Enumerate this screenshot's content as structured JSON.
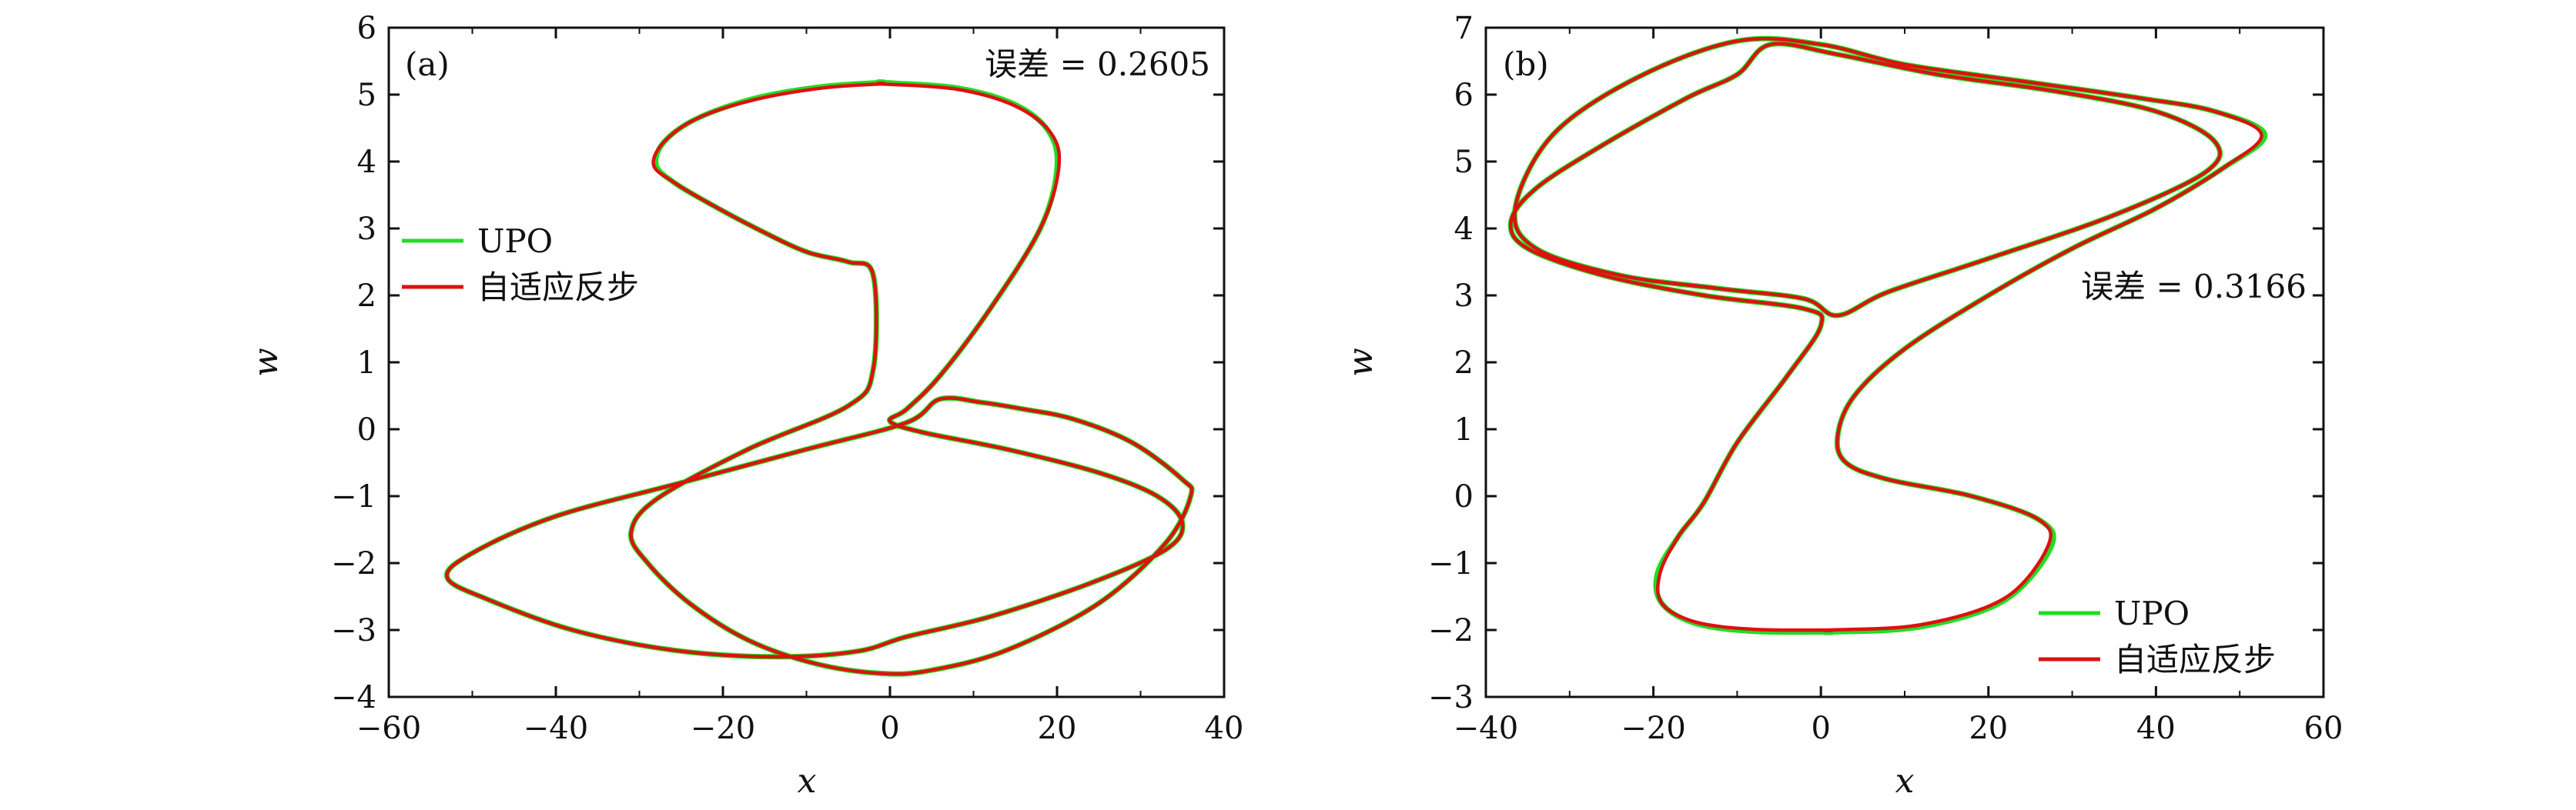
{
  "chart_data": [
    {
      "type": "line",
      "panel_label": "(a)",
      "annotation": "误差 = 0.2605",
      "xlabel": "x",
      "ylabel": "w",
      "xlim": [
        -60,
        40
      ],
      "ylim": [
        -4,
        6
      ],
      "xticks": [
        -60,
        -40,
        -20,
        0,
        20,
        40
      ],
      "xtick_labels": [
        "−60",
        "−40",
        "−20",
        "0",
        "20",
        "40"
      ],
      "yticks": [
        -4,
        -3,
        -2,
        -1,
        0,
        1,
        2,
        3,
        4,
        5,
        6
      ],
      "ytick_labels": [
        "−4",
        "−3",
        "−2",
        "−1",
        "0",
        "1",
        "2",
        "3",
        "4",
        "5",
        "6"
      ],
      "grid": false,
      "legend_placement": "left",
      "series": [
        {
          "name": "UPO",
          "color": "#22dd22",
          "x": [
            -1,
            8,
            15,
            19,
            20,
            18,
            12,
            6,
            2,
            0,
            4,
            14,
            25,
            32,
            35,
            33,
            24,
            12,
            2,
            -4,
            -14,
            -26,
            -38,
            -48,
            -53,
            -50,
            -40,
            -25,
            -10,
            2,
            6,
            11,
            16,
            22,
            29,
            35,
            36,
            33,
            25,
            14,
            5,
            -1,
            -9,
            -17,
            -24,
            -29,
            -31,
            -28,
            -17,
            -5,
            -2,
            -2,
            -5,
            -10,
            -16,
            -22,
            -26,
            -28,
            -27,
            -23,
            -16,
            -8,
            -1
          ],
          "y": [
            5.18,
            5.1,
            4.85,
            4.45,
            3.9,
            3.0,
            1.8,
            0.8,
            0.3,
            0.12,
            -0.05,
            -0.3,
            -0.65,
            -1.0,
            -1.4,
            -1.8,
            -2.3,
            -2.8,
            -3.1,
            -3.32,
            -3.4,
            -3.3,
            -3.0,
            -2.55,
            -2.22,
            -1.85,
            -1.3,
            -0.8,
            -0.3,
            0.1,
            0.45,
            0.4,
            0.3,
            0.15,
            -0.2,
            -0.75,
            -1.0,
            -1.7,
            -2.6,
            -3.3,
            -3.6,
            -3.65,
            -3.5,
            -3.15,
            -2.6,
            -2.0,
            -1.55,
            -1.05,
            -0.3,
            0.35,
            0.9,
            2.3,
            2.5,
            2.65,
            3.0,
            3.4,
            3.7,
            3.95,
            4.3,
            4.65,
            4.95,
            5.12,
            5.18
          ]
        },
        {
          "name": "自适应反步",
          "color": "#dd1111",
          "x": [
            -1,
            8,
            15,
            19.3,
            20.2,
            18,
            12,
            6,
            2,
            0,
            4,
            14,
            25,
            32,
            35,
            33,
            24,
            12,
            2,
            -4,
            -14,
            -26,
            -38,
            -48,
            -53,
            -50,
            -40,
            -25,
            -10,
            2,
            6,
            11,
            16,
            22,
            29,
            35,
            36,
            33,
            25,
            14,
            5,
            -1,
            -9,
            -17,
            -24,
            -29,
            -31,
            -28,
            -17,
            -5,
            -2,
            -2,
            -5,
            -10,
            -16,
            -22,
            -26,
            -28.3,
            -27,
            -23,
            -16,
            -8,
            -1
          ],
          "y": [
            5.16,
            5.08,
            4.83,
            4.42,
            3.9,
            3.0,
            1.8,
            0.8,
            0.3,
            0.12,
            -0.05,
            -0.3,
            -0.65,
            -1.0,
            -1.4,
            -1.8,
            -2.3,
            -2.8,
            -3.1,
            -3.32,
            -3.4,
            -3.3,
            -3.0,
            -2.55,
            -2.22,
            -1.85,
            -1.3,
            -0.8,
            -0.3,
            0.1,
            0.45,
            0.4,
            0.3,
            0.15,
            -0.2,
            -0.75,
            -1.0,
            -1.7,
            -2.6,
            -3.3,
            -3.6,
            -3.65,
            -3.5,
            -3.15,
            -2.6,
            -2.0,
            -1.55,
            -1.05,
            -0.3,
            0.35,
            0.9,
            2.3,
            2.5,
            2.65,
            3.0,
            3.4,
            3.7,
            3.95,
            4.3,
            4.65,
            4.93,
            5.1,
            5.16
          ]
        }
      ]
    },
    {
      "type": "line",
      "panel_label": "(b)",
      "annotation": "误差 = 0.3166",
      "xlabel": "x",
      "ylabel": "w",
      "xlim": [
        -40,
        60
      ],
      "ylim": [
        -3,
        7
      ],
      "xticks": [
        -40,
        -20,
        0,
        20,
        40,
        60
      ],
      "xtick_labels": [
        "−40",
        "−20",
        "0",
        "20",
        "40",
        "60"
      ],
      "yticks": [
        -3,
        -2,
        -1,
        0,
        1,
        2,
        3,
        4,
        5,
        6,
        7
      ],
      "ytick_labels": [
        "−3",
        "−2",
        "−1",
        "0",
        "1",
        "2",
        "3",
        "4",
        "5",
        "6",
        "7"
      ],
      "grid": false,
      "legend_placement": "bottom-right",
      "series": [
        {
          "name": "UPO",
          "color": "#22dd22",
          "x": [
            1,
            12,
            22,
            27.5,
            26,
            18,
            8,
            3,
            2,
            4,
            10,
            20,
            30,
            40,
            48,
            53,
            47,
            38,
            24,
            10,
            0,
            -10,
            -22,
            -32,
            -36.5,
            -34,
            -24,
            -12,
            -2,
            2,
            8,
            20,
            35,
            46,
            47,
            40,
            28,
            14,
            2,
            -6,
            -10,
            -16,
            -26,
            -34,
            -37,
            -35,
            -26,
            -14,
            -2,
            0,
            -4,
            -10,
            -14,
            -17,
            -19.5,
            -19,
            -15,
            -8,
            1
          ],
          "y": [
            -2.03,
            -1.95,
            -1.55,
            -0.75,
            -0.35,
            0.0,
            0.25,
            0.5,
            0.9,
            1.5,
            2.2,
            3.0,
            3.7,
            4.3,
            4.9,
            5.4,
            5.75,
            5.95,
            6.2,
            6.45,
            6.75,
            6.8,
            6.25,
            5.4,
            4.3,
            3.7,
            3.3,
            3.1,
            2.95,
            2.7,
            3.05,
            3.55,
            4.2,
            4.85,
            5.3,
            5.75,
            6.05,
            6.3,
            6.6,
            6.75,
            6.3,
            5.95,
            5.25,
            4.6,
            4.1,
            3.7,
            3.3,
            3.0,
            2.8,
            2.55,
            1.8,
            0.8,
            -0.1,
            -0.6,
            -1.15,
            -1.6,
            -1.9,
            -2.02,
            -2.03
          ]
        },
        {
          "name": "自适应反步",
          "color": "#dd1111",
          "x": [
            1,
            12,
            22,
            27.1,
            26,
            18,
            8,
            3,
            2,
            4,
            10,
            20,
            30,
            40,
            48,
            52.6,
            47,
            38,
            24,
            10,
            0,
            -10,
            -22,
            -32,
            -36.5,
            -34,
            -24,
            -12,
            -2,
            2,
            8,
            20,
            35,
            46,
            47,
            40,
            28,
            14,
            2,
            -6,
            -10,
            -16,
            -26,
            -34,
            -37,
            -35,
            -26,
            -14,
            -2,
            0,
            -4,
            -10,
            -14,
            -17,
            -19.2,
            -19,
            -15,
            -8,
            1
          ],
          "y": [
            -2.0,
            -1.92,
            -1.52,
            -0.75,
            -0.35,
            0.0,
            0.25,
            0.5,
            0.9,
            1.5,
            2.2,
            3.0,
            3.7,
            4.3,
            4.9,
            5.4,
            5.75,
            5.95,
            6.2,
            6.45,
            6.75,
            6.8,
            6.25,
            5.4,
            4.3,
            3.7,
            3.3,
            3.1,
            2.95,
            2.7,
            3.05,
            3.55,
            4.2,
            4.85,
            5.3,
            5.75,
            6.05,
            6.3,
            6.6,
            6.75,
            6.3,
            5.95,
            5.25,
            4.6,
            4.1,
            3.7,
            3.3,
            3.0,
            2.8,
            2.55,
            1.8,
            0.8,
            -0.1,
            -0.6,
            -1.15,
            -1.6,
            -1.88,
            -1.99,
            -2.0
          ]
        }
      ]
    }
  ]
}
